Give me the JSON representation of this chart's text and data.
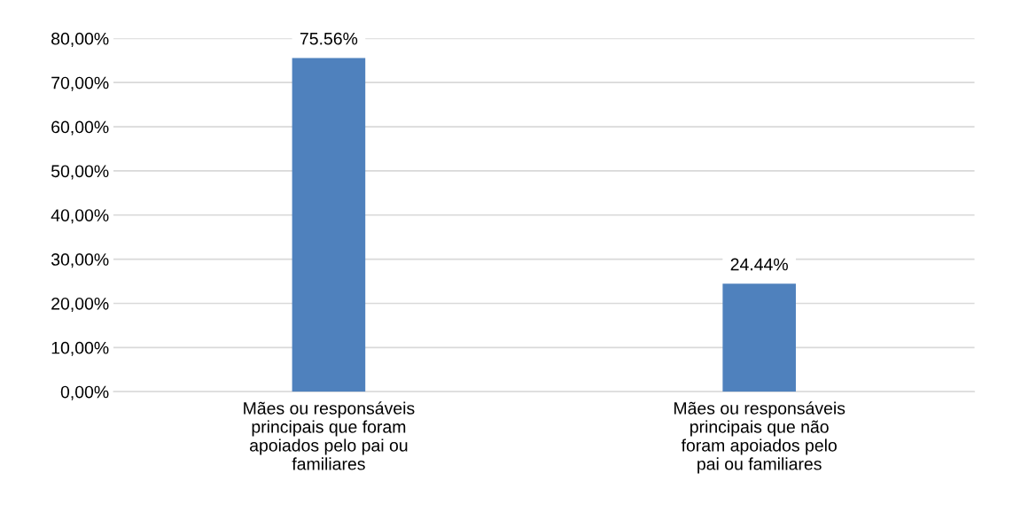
{
  "chart_data": {
    "type": "bar",
    "categories": [
      "Mães ou responsáveis\nprincipais que foram\napoiados pelo pai ou\nfamiliares",
      "Mães ou responsáveis\nprincipais que não\nforam apoiados pelo\npai ou familiares"
    ],
    "values": [
      75.56,
      24.44
    ],
    "color": "#4f81bd",
    "value_labels": [
      "75.56%",
      "24.44%"
    ],
    "ylim": [
      0,
      80
    ],
    "yticks": [
      {
        "value": 0,
        "label": "0,00%"
      },
      {
        "value": 10,
        "label": "10,00%"
      },
      {
        "value": 20,
        "label": "20,00%"
      },
      {
        "value": 30,
        "label": "30,00%"
      },
      {
        "value": 40,
        "label": "40,00%"
      },
      {
        "value": 50,
        "label": "50,00%"
      },
      {
        "value": 60,
        "label": "60,00%"
      },
      {
        "value": 70,
        "label": "70,00%"
      },
      {
        "value": 80,
        "label": "80,00%"
      }
    ],
    "grid": "y"
  }
}
